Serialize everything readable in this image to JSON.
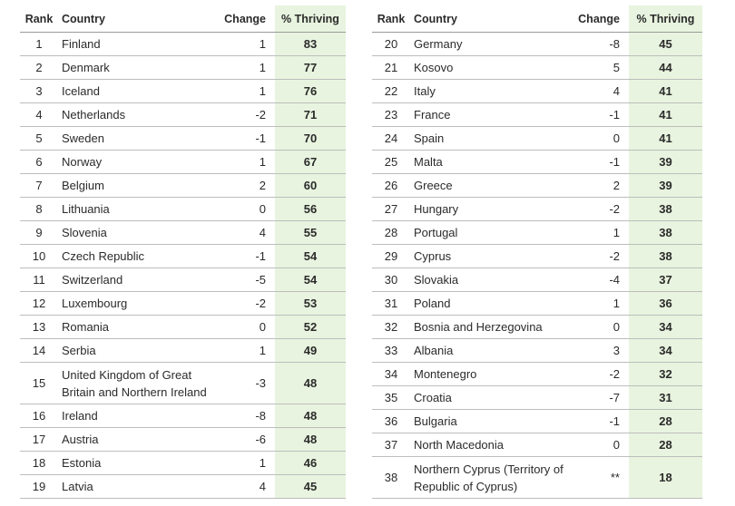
{
  "headers": {
    "rank": "Rank",
    "country": "Country",
    "change": "Change",
    "thriving": "% Thriving"
  },
  "left_rows": [
    {
      "rank": "1",
      "country": "Finland",
      "change": "1",
      "thriving": "83"
    },
    {
      "rank": "2",
      "country": "Denmark",
      "change": "1",
      "thriving": "77"
    },
    {
      "rank": "3",
      "country": "Iceland",
      "change": "1",
      "thriving": "76"
    },
    {
      "rank": "4",
      "country": "Netherlands",
      "change": "-2",
      "thriving": "71"
    },
    {
      "rank": "5",
      "country": "Sweden",
      "change": "-1",
      "thriving": "70"
    },
    {
      "rank": "6",
      "country": "Norway",
      "change": "1",
      "thriving": "67"
    },
    {
      "rank": "7",
      "country": "Belgium",
      "change": "2",
      "thriving": "60"
    },
    {
      "rank": "8",
      "country": "Lithuania",
      "change": "0",
      "thriving": "56"
    },
    {
      "rank": "9",
      "country": "Slovenia",
      "change": "4",
      "thriving": "55"
    },
    {
      "rank": "10",
      "country": "Czech Republic",
      "change": "-1",
      "thriving": "54"
    },
    {
      "rank": "11",
      "country": "Switzerland",
      "change": "-5",
      "thriving": "54"
    },
    {
      "rank": "12",
      "country": "Luxembourg",
      "change": "-2",
      "thriving": "53"
    },
    {
      "rank": "13",
      "country": "Romania",
      "change": "0",
      "thriving": "52"
    },
    {
      "rank": "14",
      "country": "Serbia",
      "change": "1",
      "thriving": "49"
    },
    {
      "rank": "15",
      "country": "United Kingdom of Great Britain and Northern Ireland",
      "change": "-3",
      "thriving": "48"
    },
    {
      "rank": "16",
      "country": "Ireland",
      "change": "-8",
      "thriving": "48"
    },
    {
      "rank": "17",
      "country": "Austria",
      "change": "-6",
      "thriving": "48"
    },
    {
      "rank": "18",
      "country": "Estonia",
      "change": "1",
      "thriving": "46"
    },
    {
      "rank": "19",
      "country": "Latvia",
      "change": "4",
      "thriving": "45"
    }
  ],
  "right_rows": [
    {
      "rank": "20",
      "country": "Germany",
      "change": "-8",
      "thriving": "45"
    },
    {
      "rank": "21",
      "country": "Kosovo",
      "change": "5",
      "thriving": "44"
    },
    {
      "rank": "22",
      "country": "Italy",
      "change": "4",
      "thriving": "41"
    },
    {
      "rank": "23",
      "country": "France",
      "change": "-1",
      "thriving": "41"
    },
    {
      "rank": "24",
      "country": "Spain",
      "change": "0",
      "thriving": "41"
    },
    {
      "rank": "25",
      "country": "Malta",
      "change": "-1",
      "thriving": "39"
    },
    {
      "rank": "26",
      "country": "Greece",
      "change": "2",
      "thriving": "39"
    },
    {
      "rank": "27",
      "country": "Hungary",
      "change": "-2",
      "thriving": "38"
    },
    {
      "rank": "28",
      "country": "Portugal",
      "change": "1",
      "thriving": "38"
    },
    {
      "rank": "29",
      "country": "Cyprus",
      "change": "-2",
      "thriving": "38"
    },
    {
      "rank": "30",
      "country": "Slovakia",
      "change": "-4",
      "thriving": "37"
    },
    {
      "rank": "31",
      "country": "Poland",
      "change": "1",
      "thriving": "36"
    },
    {
      "rank": "32",
      "country": "Bosnia and Herzegovina",
      "change": "0",
      "thriving": "34"
    },
    {
      "rank": "33",
      "country": "Albania",
      "change": "3",
      "thriving": "34"
    },
    {
      "rank": "34",
      "country": "Montenegro",
      "change": "-2",
      "thriving": "32"
    },
    {
      "rank": "35",
      "country": "Croatia",
      "change": "-7",
      "thriving": "31"
    },
    {
      "rank": "36",
      "country": "Bulgaria",
      "change": "-1",
      "thriving": "28"
    },
    {
      "rank": "37",
      "country": "North Macedonia",
      "change": "0",
      "thriving": "28"
    },
    {
      "rank": "38",
      "country": "Northern Cyprus (Territory of Republic of Cyprus)",
      "change": "**",
      "thriving": "18"
    }
  ]
}
